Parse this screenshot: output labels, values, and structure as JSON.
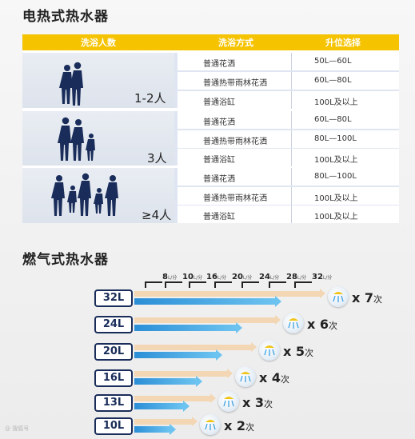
{
  "electric": {
    "title": "电热式热水器",
    "headers": {
      "people": "洗浴人数",
      "mode": "洗浴方式",
      "capacity": "升位选择"
    },
    "groups": [
      {
        "people": "1-2人",
        "rows": [
          {
            "mode": "普通花洒",
            "capacity": "50L—60L"
          },
          {
            "mode": "普通热带雨林花洒",
            "capacity": "60L—80L"
          },
          {
            "mode": "普通浴缸",
            "capacity": "100L及以上"
          }
        ]
      },
      {
        "people": "3人",
        "rows": [
          {
            "mode": "普通花洒",
            "capacity": "60L—80L"
          },
          {
            "mode": "普通热带雨林花洒",
            "capacity": "80L—100L"
          },
          {
            "mode": "普通浴缸",
            "capacity": "100L及以上"
          }
        ]
      },
      {
        "people": "≥4人",
        "rows": [
          {
            "mode": "普通花洒",
            "capacity": "80L—100L"
          },
          {
            "mode": "普通热带雨林花洒",
            "capacity": "100L及以上"
          },
          {
            "mode": "普通浴缸",
            "capacity": "100L及以上"
          }
        ]
      }
    ]
  },
  "gas": {
    "title": "燃气式热水器",
    "unit": "L/分",
    "scale": [
      "8",
      "10",
      "16",
      "20",
      "24",
      "28",
      "32"
    ],
    "rows": [
      {
        "label": "32L",
        "count": "x 7",
        "suffix": "次",
        "blue": 0.64,
        "tan": 1.0
      },
      {
        "label": "24L",
        "count": "x 6",
        "suffix": "次",
        "blue": 0.46,
        "tan": 0.76
      },
      {
        "label": "20L",
        "count": "x 5",
        "suffix": "次",
        "blue": 0.37,
        "tan": 0.63
      },
      {
        "label": "16L",
        "count": "x 4",
        "suffix": "次",
        "blue": 0.28,
        "tan": 0.5
      },
      {
        "label": "13L",
        "count": "x 3",
        "suffix": "次",
        "blue": 0.22,
        "tan": 0.41
      },
      {
        "label": "10L",
        "count": "x 2",
        "suffix": "次",
        "blue": 0.16,
        "tan": 0.31
      }
    ]
  },
  "colors": {
    "header": "#f5c300",
    "navy": "#1a2d5a",
    "blue": "#2b8ed6",
    "tan": "#f3d6b3"
  }
}
